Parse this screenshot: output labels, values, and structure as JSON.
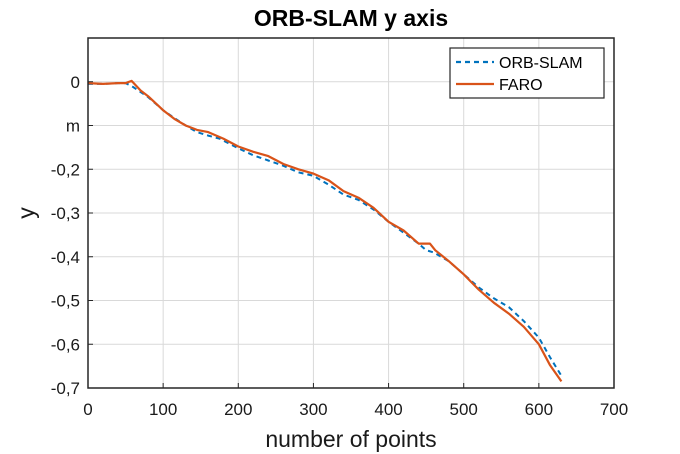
{
  "chart_data": {
    "type": "line",
    "title": "ORB-SLAM y axis",
    "xlabel": "number of points",
    "ylabel": "y",
    "xlim": [
      0,
      700
    ],
    "ylim": [
      -0.7,
      0.1
    ],
    "grid": true,
    "legend_position": "top-right",
    "xticks": [
      {
        "value": 0,
        "label": "0"
      },
      {
        "value": 100,
        "label": "100"
      },
      {
        "value": 200,
        "label": "200"
      },
      {
        "value": 300,
        "label": "300"
      },
      {
        "value": 400,
        "label": "400"
      },
      {
        "value": 500,
        "label": "500"
      },
      {
        "value": 600,
        "label": "600"
      },
      {
        "value": 700,
        "label": "700"
      }
    ],
    "yticks": [
      {
        "value": 0,
        "label": "0"
      },
      {
        "value": -0.1,
        "label": "m"
      },
      {
        "value": -0.2,
        "label": "-0,2"
      },
      {
        "value": -0.3,
        "label": "-0,3"
      },
      {
        "value": -0.4,
        "label": "-0,4"
      },
      {
        "value": -0.5,
        "label": "-0,5"
      },
      {
        "value": -0.6,
        "label": "-0,6"
      },
      {
        "value": -0.7,
        "label": "-0,7"
      }
    ],
    "series": [
      {
        "name": "ORB-SLAM",
        "color": "#0072BD",
        "style": "dashed",
        "x": [
          0,
          20,
          40,
          50,
          60,
          80,
          100,
          115,
          130,
          145,
          160,
          175,
          200,
          220,
          240,
          260,
          280,
          300,
          320,
          340,
          360,
          380,
          400,
          420,
          440,
          450,
          460,
          480,
          500,
          520,
          540,
          560,
          580,
          600,
          615,
          630
        ],
        "y": [
          -0.005,
          -0.005,
          -0.003,
          -0.003,
          -0.012,
          -0.035,
          -0.065,
          -0.083,
          -0.1,
          -0.115,
          -0.123,
          -0.13,
          -0.152,
          -0.168,
          -0.18,
          -0.192,
          -0.207,
          -0.215,
          -0.235,
          -0.258,
          -0.27,
          -0.292,
          -0.32,
          -0.345,
          -0.37,
          -0.385,
          -0.39,
          -0.41,
          -0.44,
          -0.47,
          -0.495,
          -0.515,
          -0.547,
          -0.585,
          -0.63,
          -0.672
        ]
      },
      {
        "name": "FARO",
        "color": "#D95319",
        "style": "solid",
        "x": [
          0,
          20,
          40,
          50,
          58,
          70,
          80,
          100,
          115,
          130,
          145,
          160,
          180,
          200,
          220,
          240,
          260,
          280,
          300,
          320,
          340,
          360,
          380,
          400,
          420,
          440,
          455,
          462,
          480,
          500,
          520,
          540,
          560,
          580,
          600,
          615,
          630
        ],
        "y": [
          -0.003,
          -0.005,
          -0.003,
          -0.003,
          0.002,
          -0.02,
          -0.033,
          -0.065,
          -0.085,
          -0.1,
          -0.11,
          -0.115,
          -0.13,
          -0.148,
          -0.16,
          -0.17,
          -0.188,
          -0.2,
          -0.21,
          -0.225,
          -0.25,
          -0.265,
          -0.288,
          -0.32,
          -0.34,
          -0.37,
          -0.37,
          -0.385,
          -0.41,
          -0.44,
          -0.475,
          -0.505,
          -0.53,
          -0.56,
          -0.6,
          -0.648,
          -0.685
        ]
      }
    ]
  }
}
